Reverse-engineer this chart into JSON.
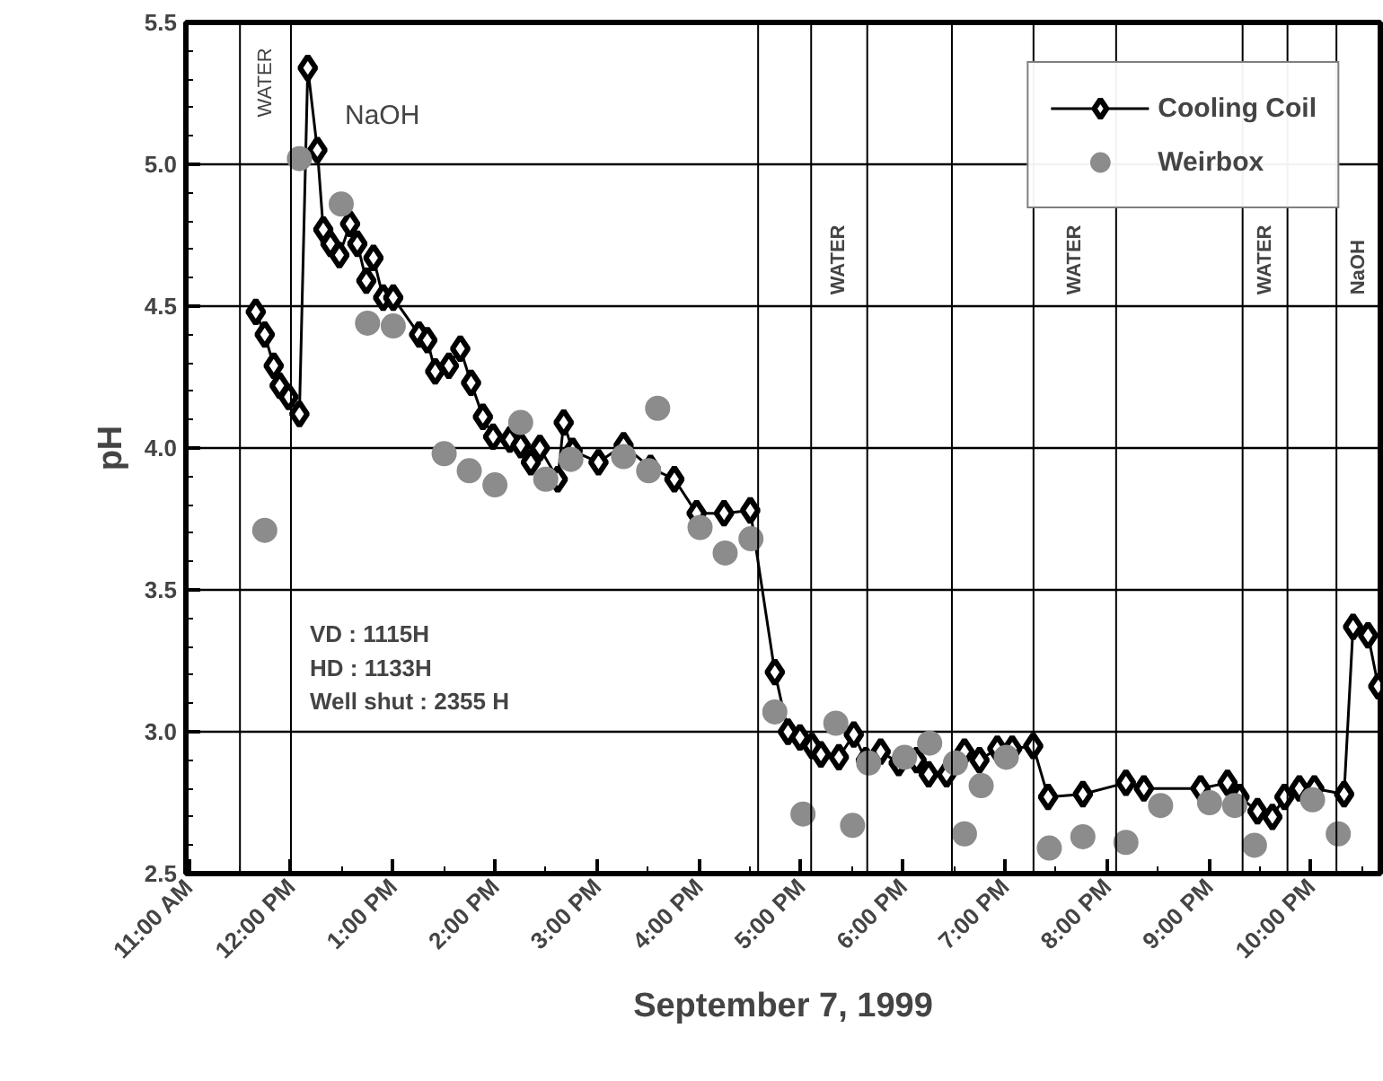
{
  "chart_data": {
    "type": "line",
    "xlabel": "September 7, 1999",
    "ylabel": "pH",
    "xlim": [
      10.97,
      22.68
    ],
    "ylim": [
      2.5,
      5.5
    ],
    "xticks": [
      {
        "value": 11,
        "label": "11:00 AM"
      },
      {
        "value": 12,
        "label": "12:00 PM"
      },
      {
        "value": 13,
        "label": "1:00 PM"
      },
      {
        "value": 14,
        "label": "2:00 PM"
      },
      {
        "value": 15,
        "label": "3:00 PM"
      },
      {
        "value": 16,
        "label": "4:00 PM"
      },
      {
        "value": 17,
        "label": "5:00 PM"
      },
      {
        "value": 18,
        "label": "6:00 PM"
      },
      {
        "value": 19,
        "label": "7:00 PM"
      },
      {
        "value": 20,
        "label": "8:00 PM"
      },
      {
        "value": 21,
        "label": "9:00 PM"
      },
      {
        "value": 22,
        "label": "10:00 PM"
      }
    ],
    "yticks": [
      2.5,
      {
        "value": 3,
        "label": "3.0"
      },
      3.5,
      {
        "value": 4,
        "label": "4.0"
      },
      4.5,
      {
        "value": 5,
        "label": "5.0"
      },
      5.5
    ],
    "grid": "y",
    "legend": "top right",
    "series": [
      {
        "name": "Cooling Coil",
        "marker": "diamond",
        "line_style": "solid",
        "color": "#000000",
        "x": [
          11.655,
          11.743,
          11.831,
          11.889,
          11.977,
          12.083,
          12.165,
          12.259,
          12.317,
          12.387,
          12.475,
          12.58,
          12.651,
          12.739,
          12.809,
          12.904,
          13.003,
          13.256,
          13.337,
          13.414,
          13.548,
          13.66,
          13.766,
          13.882,
          13.982,
          14.146,
          14.252,
          14.352,
          14.44,
          14.616,
          14.674,
          14.762,
          15.015,
          15.261,
          15.525,
          15.759,
          15.977,
          16.246,
          16.503,
          16.744,
          16.873,
          16.99,
          17.108,
          17.196,
          17.372,
          17.518,
          17.636,
          17.782,
          17.958,
          18.134,
          18.252,
          18.428,
          18.603,
          18.75,
          18.925,
          19.071,
          19.277,
          19.423,
          19.764,
          20.186,
          20.362,
          20.918,
          21.182,
          21.3,
          21.476,
          21.622,
          21.74,
          21.886,
          22.033,
          22.325,
          22.413,
          22.56,
          22.66
        ],
        "values": [
          4.48,
          4.4,
          4.29,
          4.22,
          4.18,
          4.12,
          5.34,
          5.05,
          4.77,
          4.72,
          4.68,
          4.79,
          4.72,
          4.59,
          4.67,
          4.53,
          4.53,
          4.4,
          4.38,
          4.27,
          4.29,
          4.35,
          4.23,
          4.11,
          4.04,
          4.03,
          4.01,
          3.95,
          4.0,
          3.89,
          4.09,
          3.99,
          3.95,
          4.01,
          3.93,
          3.89,
          3.77,
          3.77,
          3.78,
          3.21,
          3.0,
          2.98,
          2.95,
          2.92,
          2.91,
          2.99,
          2.9,
          2.93,
          2.89,
          2.9,
          2.85,
          2.85,
          2.93,
          2.9,
          2.94,
          2.94,
          2.95,
          2.77,
          2.78,
          2.82,
          2.8,
          2.8,
          2.82,
          2.77,
          2.72,
          2.7,
          2.77,
          2.8,
          2.8,
          2.78,
          3.37,
          3.34,
          3.16
        ]
      },
      {
        "name": "Weirbox",
        "type": "scatter",
        "marker": "circle",
        "color": "#8c8c8c",
        "x": [
          11.743,
          12.083,
          12.493,
          12.751,
          13.003,
          13.502,
          13.748,
          14.0,
          14.252,
          14.498,
          14.744,
          15.261,
          15.507,
          15.595,
          16.011,
          16.257,
          16.51,
          16.744,
          17.02,
          17.342,
          17.506,
          17.664,
          18.016,
          18.262,
          18.515,
          18.603,
          18.767,
          19.013,
          19.435,
          19.764,
          20.186,
          20.526,
          21.006,
          21.252,
          21.446,
          22.016,
          22.268
        ],
        "values": [
          3.71,
          5.02,
          4.86,
          4.44,
          4.43,
          3.98,
          3.92,
          3.87,
          4.09,
          3.89,
          3.96,
          3.97,
          3.92,
          4.14,
          3.72,
          3.63,
          3.68,
          3.07,
          2.71,
          3.03,
          2.67,
          2.89,
          2.91,
          2.96,
          2.89,
          2.64,
          2.81,
          2.91,
          2.59,
          2.63,
          2.61,
          2.74,
          2.75,
          2.74,
          2.6,
          2.76,
          2.64
        ]
      }
    ],
    "ref_lines": [
      {
        "axis": "x",
        "value": 11.5,
        "label": "WATER"
      },
      {
        "axis": "x",
        "value": 12.0,
        "label": "NaOH"
      },
      {
        "axis": "x",
        "value": 16.58
      },
      {
        "axis": "x",
        "value": 17.1,
        "label": "WATER"
      },
      {
        "axis": "x",
        "value": 17.65
      },
      {
        "axis": "x",
        "value": 18.48
      },
      {
        "axis": "x",
        "value": 19.28,
        "label": "WATER"
      },
      {
        "axis": "x",
        "value": 20.09
      },
      {
        "axis": "x",
        "value": 21.33,
        "label": "WATER"
      },
      {
        "axis": "x",
        "value": 21.77
      },
      {
        "axis": "x",
        "value": 22.25,
        "label": "NaOH"
      }
    ],
    "annotations": [
      "VD : 1115H\nHD : 1133H\nWell shut : 2355 H"
    ]
  }
}
